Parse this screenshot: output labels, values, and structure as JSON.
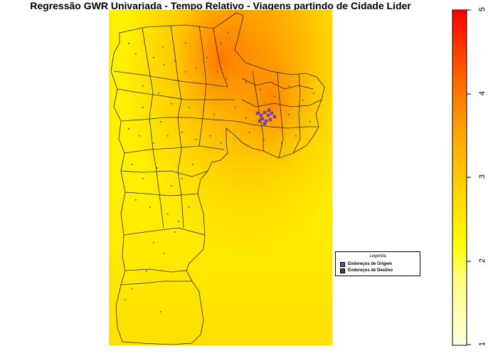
{
  "title": "Regressão GWR Univariada - Tempo Relativo - Viagens partindo de Cidade Lider",
  "legend": {
    "title": "Legenda",
    "items": [
      {
        "label": "Endereços de Origem",
        "color": "#7f3fbf"
      },
      {
        "label": "Endereços de Destino",
        "color": "#1f5f2f"
      }
    ]
  },
  "colorbar": {
    "ticks": [
      "1",
      "2",
      "3",
      "4",
      "5"
    ],
    "min": 1,
    "max": 5,
    "colors": [
      "#ffffe0",
      "#ffff66",
      "#ffe600",
      "#ffb000",
      "#ff7a00",
      "#ff3a00",
      "#ff0000"
    ]
  }
}
